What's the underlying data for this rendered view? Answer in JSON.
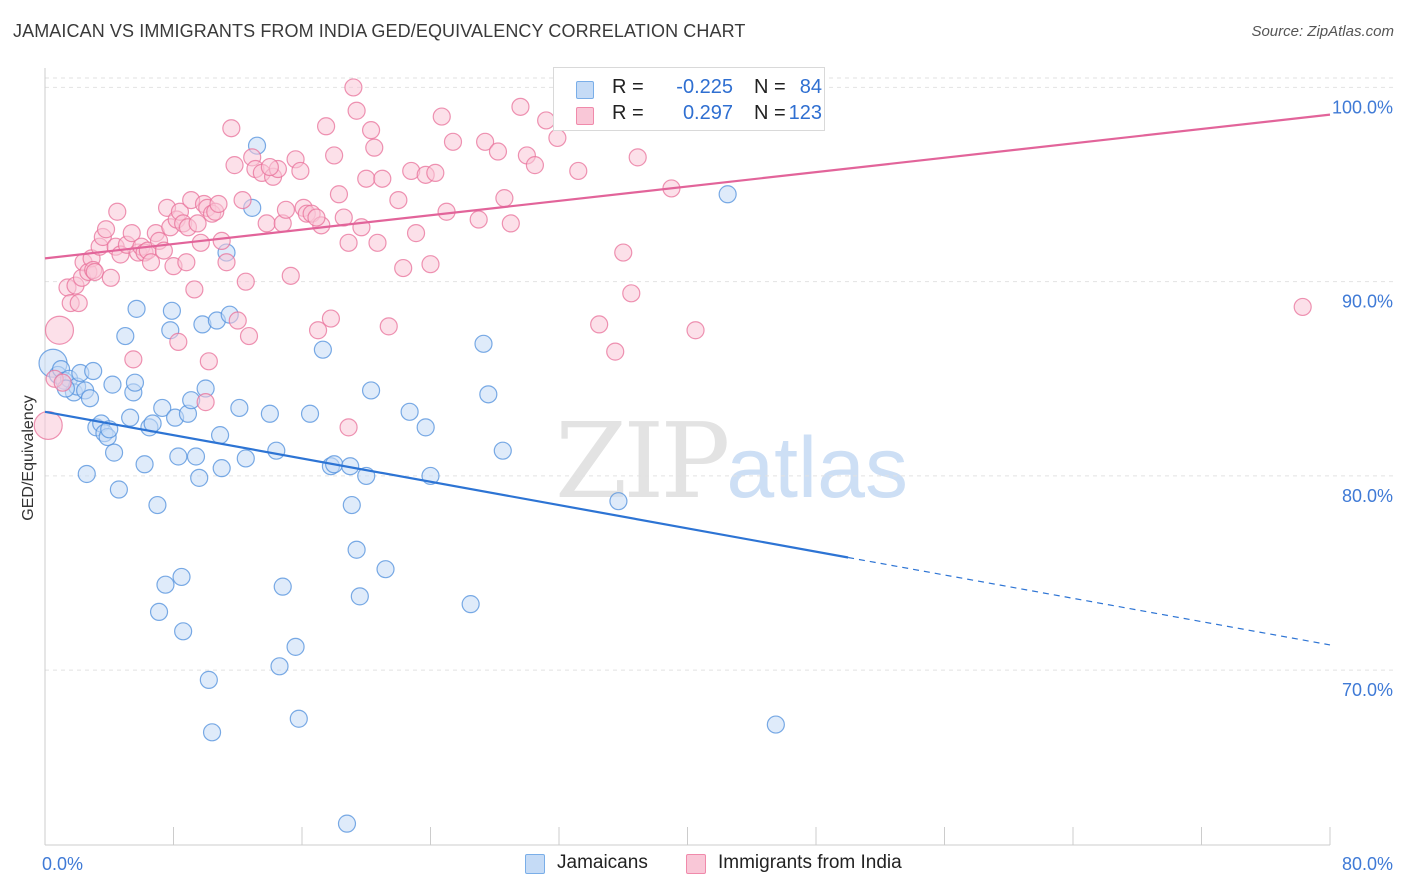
{
  "header": {
    "title": "JAMAICAN VS IMMIGRANTS FROM INDIA GED/EQUIVALENCY CORRELATION CHART",
    "source": "Source: ZipAtlas.com"
  },
  "stats": [
    {
      "r_label": "R =",
      "r_value": "-0.225",
      "n_label": "N =",
      "n_value": "84",
      "color": "#7aaee8",
      "fill": "#c5dbf6"
    },
    {
      "r_label": "R =",
      "r_value": "0.297",
      "n_label": "N =",
      "n_value": "123",
      "color": "#f08aab",
      "fill": "#f9c7d7"
    }
  ],
  "legend": [
    {
      "label": "Jamaicans",
      "color": "#7aaee8",
      "fill": "#c5dbf6"
    },
    {
      "label": "Immigrants from India",
      "color": "#f08aab",
      "fill": "#f9c7d7"
    }
  ],
  "watermark": {
    "zip": "ZIP",
    "atlas": "atlas"
  },
  "chart_data": {
    "type": "scatter",
    "title": "JAMAICAN VS IMMIGRANTS FROM INDIA GED/EQUIVALENCY CORRELATION CHART",
    "xlabel": "",
    "ylabel": "GED/Equivalency",
    "xlim": [
      0,
      80
    ],
    "ylim": [
      61,
      101
    ],
    "x_tick_labels": [
      {
        "value": 0,
        "label": "0.0%"
      },
      {
        "value": 80,
        "label": "80.0%"
      }
    ],
    "y_tick_labels": [
      {
        "value": 70,
        "label": "70.0%"
      },
      {
        "value": 80,
        "label": "80.0%"
      },
      {
        "value": 90,
        "label": "90.0%"
      },
      {
        "value": 100,
        "label": "100.0%"
      }
    ],
    "grid": true,
    "series": [
      {
        "name": "Jamaicans",
        "color": "#4f8fdc",
        "fill": "#c5dbf6",
        "trend": {
          "x0": 0,
          "y0": 83.3,
          "x1": 50,
          "y1": 75.8,
          "dash_to_x": 80,
          "dash_to_y": 71.3
        },
        "points": [
          [
            0.5,
            85.8
          ],
          [
            0.8,
            85.2
          ],
          [
            1.0,
            85.5
          ],
          [
            1.2,
            84.9
          ],
          [
            1.5,
            85.0
          ],
          [
            1.8,
            84.3
          ],
          [
            2.0,
            84.6
          ],
          [
            2.2,
            85.3
          ],
          [
            2.5,
            84.4
          ],
          [
            2.8,
            84.0
          ],
          [
            3.0,
            85.4
          ],
          [
            1.3,
            84.5
          ],
          [
            3.2,
            82.5
          ],
          [
            3.5,
            82.7
          ],
          [
            3.7,
            82.2
          ],
          [
            3.9,
            82.0
          ],
          [
            4.0,
            82.4
          ],
          [
            4.3,
            81.2
          ],
          [
            2.6,
            80.1
          ],
          [
            4.6,
            79.3
          ],
          [
            4.2,
            84.7
          ],
          [
            5.0,
            87.2
          ],
          [
            5.3,
            83.0
          ],
          [
            5.5,
            84.3
          ],
          [
            5.6,
            84.8
          ],
          [
            6.2,
            80.6
          ],
          [
            6.5,
            82.5
          ],
          [
            6.7,
            82.7
          ],
          [
            7.0,
            78.5
          ],
          [
            7.1,
            73.0
          ],
          [
            7.3,
            83.5
          ],
          [
            7.5,
            74.4
          ],
          [
            5.7,
            88.6
          ],
          [
            7.8,
            87.5
          ],
          [
            7.9,
            88.5
          ],
          [
            8.1,
            83.0
          ],
          [
            8.3,
            81.0
          ],
          [
            8.5,
            74.8
          ],
          [
            8.6,
            72.0
          ],
          [
            8.9,
            83.2
          ],
          [
            9.1,
            83.9
          ],
          [
            9.4,
            81.0
          ],
          [
            9.6,
            79.9
          ],
          [
            9.8,
            87.8
          ],
          [
            10.0,
            84.5
          ],
          [
            10.2,
            69.5
          ],
          [
            10.4,
            66.8
          ],
          [
            10.7,
            88.0
          ],
          [
            10.9,
            82.1
          ],
          [
            11.0,
            80.4
          ],
          [
            11.3,
            91.5
          ],
          [
            11.5,
            88.3
          ],
          [
            12.1,
            83.5
          ],
          [
            12.5,
            80.9
          ],
          [
            12.9,
            93.8
          ],
          [
            13.2,
            97.0
          ],
          [
            14.0,
            83.2
          ],
          [
            14.4,
            81.3
          ],
          [
            14.6,
            70.2
          ],
          [
            14.8,
            74.3
          ],
          [
            15.6,
            71.2
          ],
          [
            15.8,
            67.5
          ],
          [
            16.5,
            83.2
          ],
          [
            17.3,
            86.5
          ],
          [
            17.8,
            80.5
          ],
          [
            18.0,
            80.6
          ],
          [
            18.8,
            62.1
          ],
          [
            19.0,
            80.5
          ],
          [
            19.1,
            78.5
          ],
          [
            19.4,
            76.2
          ],
          [
            19.6,
            73.8
          ],
          [
            20.0,
            80.0
          ],
          [
            20.3,
            84.4
          ],
          [
            21.2,
            75.2
          ],
          [
            22.7,
            83.3
          ],
          [
            23.7,
            82.5
          ],
          [
            24.0,
            80.0
          ],
          [
            26.5,
            73.4
          ],
          [
            27.3,
            86.8
          ],
          [
            27.6,
            84.2
          ],
          [
            28.5,
            81.3
          ],
          [
            35.7,
            78.7
          ],
          [
            42.5,
            94.5
          ],
          [
            45.5,
            67.2
          ]
        ]
      },
      {
        "name": "Immigrants from India",
        "color": "#e8709a",
        "fill": "#f9c7d7",
        "trend": {
          "x0": 0,
          "y0": 91.2,
          "x1": 80,
          "y1": 98.6
        },
        "points": [
          [
            0.2,
            82.6
          ],
          [
            0.6,
            85.0
          ],
          [
            0.9,
            87.5
          ],
          [
            1.1,
            84.8
          ],
          [
            1.4,
            89.7
          ],
          [
            1.6,
            88.9
          ],
          [
            1.9,
            89.8
          ],
          [
            2.1,
            88.9
          ],
          [
            2.3,
            90.2
          ],
          [
            2.4,
            91.0
          ],
          [
            2.7,
            90.5
          ],
          [
            2.9,
            91.2
          ],
          [
            3.0,
            90.6
          ],
          [
            3.1,
            90.5
          ],
          [
            3.4,
            91.8
          ],
          [
            3.6,
            92.3
          ],
          [
            3.8,
            92.7
          ],
          [
            4.1,
            90.2
          ],
          [
            4.4,
            91.8
          ],
          [
            4.5,
            93.6
          ],
          [
            4.7,
            91.4
          ],
          [
            5.1,
            91.9
          ],
          [
            5.4,
            92.5
          ],
          [
            5.5,
            86.0
          ],
          [
            5.8,
            91.5
          ],
          [
            6.0,
            91.8
          ],
          [
            6.2,
            91.5
          ],
          [
            6.4,
            91.6
          ],
          [
            6.6,
            91.0
          ],
          [
            6.9,
            92.5
          ],
          [
            7.1,
            92.1
          ],
          [
            7.4,
            91.6
          ],
          [
            7.6,
            93.8
          ],
          [
            7.8,
            92.8
          ],
          [
            8.0,
            90.8
          ],
          [
            8.2,
            93.2
          ],
          [
            8.4,
            93.6
          ],
          [
            8.6,
            93.0
          ],
          [
            8.8,
            91.0
          ],
          [
            8.9,
            92.8
          ],
          [
            9.1,
            94.2
          ],
          [
            9.3,
            89.6
          ],
          [
            9.5,
            93.0
          ],
          [
            9.7,
            92.0
          ],
          [
            9.9,
            94.0
          ],
          [
            10.1,
            93.8
          ],
          [
            10.4,
            93.5
          ],
          [
            10.6,
            93.6
          ],
          [
            10.8,
            94.0
          ],
          [
            11.0,
            92.1
          ],
          [
            11.3,
            91.0
          ],
          [
            11.6,
            97.9
          ],
          [
            11.8,
            96.0
          ],
          [
            12.0,
            88.0
          ],
          [
            12.3,
            94.2
          ],
          [
            12.5,
            90.0
          ],
          [
            12.7,
            87.2
          ],
          [
            12.9,
            96.4
          ],
          [
            13.1,
            95.8
          ],
          [
            13.5,
            95.6
          ],
          [
            13.8,
            93.0
          ],
          [
            14.2,
            95.4
          ],
          [
            14.5,
            95.8
          ],
          [
            14.8,
            93.0
          ],
          [
            15.0,
            93.7
          ],
          [
            15.3,
            90.3
          ],
          [
            15.6,
            96.3
          ],
          [
            15.9,
            95.7
          ],
          [
            16.1,
            93.8
          ],
          [
            16.3,
            93.5
          ],
          [
            16.6,
            93.5
          ],
          [
            17.0,
            87.5
          ],
          [
            17.2,
            92.9
          ],
          [
            17.5,
            98.0
          ],
          [
            17.8,
            88.1
          ],
          [
            18.0,
            96.5
          ],
          [
            18.3,
            94.5
          ],
          [
            18.6,
            93.3
          ],
          [
            18.9,
            92.0
          ],
          [
            19.2,
            100.0
          ],
          [
            19.4,
            98.8
          ],
          [
            19.7,
            92.8
          ],
          [
            20.0,
            95.3
          ],
          [
            20.3,
            97.8
          ],
          [
            20.5,
            96.9
          ],
          [
            20.7,
            92.0
          ],
          [
            21.0,
            95.3
          ],
          [
            21.4,
            87.7
          ],
          [
            22.0,
            94.2
          ],
          [
            22.3,
            90.7
          ],
          [
            22.8,
            95.7
          ],
          [
            23.1,
            92.5
          ],
          [
            23.7,
            95.5
          ],
          [
            24.0,
            90.9
          ],
          [
            24.3,
            95.6
          ],
          [
            24.7,
            98.5
          ],
          [
            25.0,
            93.6
          ],
          [
            25.4,
            97.2
          ],
          [
            27.0,
            93.2
          ],
          [
            27.4,
            97.2
          ],
          [
            28.2,
            96.7
          ],
          [
            28.6,
            94.3
          ],
          [
            29.0,
            93.0
          ],
          [
            29.6,
            99.0
          ],
          [
            30.0,
            96.5
          ],
          [
            30.5,
            96.0
          ],
          [
            31.2,
            98.3
          ],
          [
            31.9,
            97.4
          ],
          [
            33.2,
            95.7
          ],
          [
            34.5,
            87.8
          ],
          [
            35.5,
            86.4
          ],
          [
            36.0,
            91.5
          ],
          [
            36.5,
            89.4
          ],
          [
            36.9,
            96.4
          ],
          [
            39.0,
            94.8
          ],
          [
            40.5,
            87.5
          ],
          [
            78.3,
            88.7
          ],
          [
            8.3,
            86.9
          ],
          [
            10.2,
            85.9
          ],
          [
            14.0,
            95.9
          ],
          [
            18.9,
            82.5
          ],
          [
            10.0,
            83.8
          ],
          [
            16.9,
            93.3
          ]
        ]
      }
    ]
  }
}
